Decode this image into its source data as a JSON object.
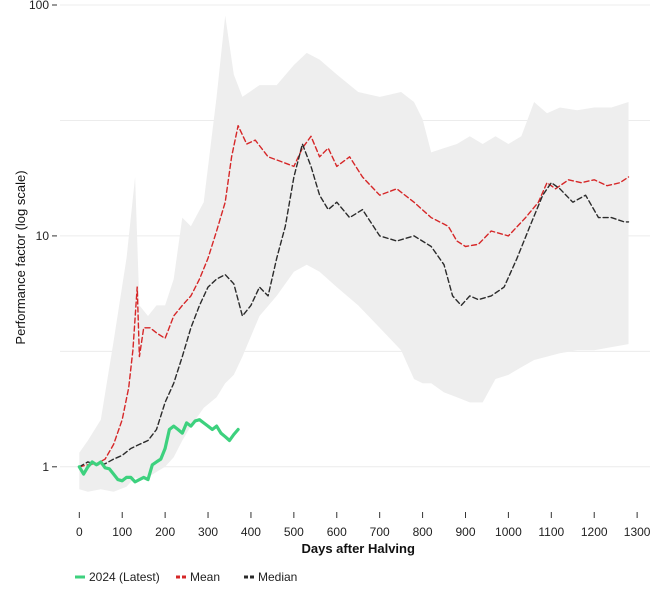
{
  "chart_data": {
    "type": "line",
    "title": "",
    "xlabel": "Days after Halving",
    "ylabel": "Performance factor (log scale)",
    "y_scale": "log",
    "xlim": [
      -45,
      1330
    ],
    "ylim": [
      0.65,
      100
    ],
    "x_ticks": [
      0,
      100,
      200,
      300,
      400,
      500,
      600,
      700,
      800,
      900,
      1000,
      1100,
      1200,
      1300
    ],
    "y_tick_labels": [
      "1",
      "10",
      "100"
    ],
    "y_tick_values": [
      1,
      10,
      100
    ],
    "grid": true,
    "legend_position": "bottom-left",
    "colors": {
      "latest": "#3dd17e",
      "mean": "#d62728",
      "median": "#2b2b2b",
      "range_band": "#eeeeee",
      "grid": "#ececec"
    },
    "legend": [
      {
        "label": "2024 (Latest)",
        "color": "#3dd17e",
        "style": "solid"
      },
      {
        "label": "Mean",
        "color": "#d62728",
        "style": "dashed"
      },
      {
        "label": "Median",
        "color": "#2b2b2b",
        "style": "dashed"
      }
    ],
    "band": {
      "name": "range",
      "x": [
        0,
        20,
        50,
        80,
        110,
        130,
        140,
        160,
        180,
        200,
        220,
        240,
        260,
        290,
        320,
        340,
        360,
        380,
        420,
        460,
        500,
        530,
        560,
        600,
        650,
        700,
        750,
        780,
        800,
        820,
        850,
        880,
        910,
        940,
        970,
        1000,
        1030,
        1060,
        1090,
        1120,
        1160,
        1200,
        1240,
        1280
      ],
      "upper": [
        1.15,
        1.3,
        1.6,
        3.5,
        8.0,
        18.0,
        5.0,
        4.5,
        5.0,
        5.0,
        6.5,
        12.0,
        11.0,
        14.0,
        40.0,
        90.0,
        50.0,
        40.0,
        45.0,
        45.0,
        55.0,
        62.0,
        58.0,
        50.0,
        42.0,
        40.0,
        42.0,
        38.0,
        32.0,
        23.0,
        24.0,
        25.0,
        27.0,
        25.0,
        27.0,
        25.0,
        27.0,
        38.0,
        34.0,
        36.0,
        35.0,
        36.0,
        36.0,
        38.0
      ],
      "lower": [
        0.8,
        0.78,
        0.8,
        0.78,
        0.82,
        0.9,
        0.88,
        0.9,
        0.95,
        1.0,
        1.1,
        1.3,
        1.5,
        1.8,
        2.0,
        2.3,
        2.5,
        3.0,
        4.5,
        5.5,
        7.0,
        7.5,
        7.0,
        6.0,
        5.0,
        4.0,
        3.2,
        2.4,
        2.3,
        2.3,
        2.1,
        2.0,
        1.9,
        1.9,
        2.4,
        2.5,
        2.7,
        2.9,
        3.0,
        3.1,
        3.2,
        3.2,
        3.3,
        3.4
      ]
    },
    "series": [
      {
        "name": "2024 (Latest)",
        "x": [
          0,
          10,
          20,
          30,
          40,
          50,
          60,
          70,
          80,
          90,
          100,
          110,
          120,
          130,
          140,
          150,
          160,
          170,
          180,
          190,
          200,
          210,
          220,
          230,
          240,
          250,
          260,
          270,
          280,
          290,
          300,
          310,
          320,
          330,
          340,
          350,
          360,
          370
        ],
        "values": [
          1.0,
          0.93,
          1.0,
          1.05,
          1.02,
          1.05,
          0.99,
          0.98,
          0.93,
          0.88,
          0.87,
          0.9,
          0.9,
          0.86,
          0.88,
          0.9,
          0.88,
          1.02,
          1.05,
          1.08,
          1.2,
          1.45,
          1.5,
          1.45,
          1.4,
          1.55,
          1.5,
          1.58,
          1.6,
          1.55,
          1.5,
          1.45,
          1.5,
          1.4,
          1.35,
          1.3,
          1.38,
          1.45
        ]
      },
      {
        "name": "Mean",
        "x": [
          0,
          20,
          40,
          60,
          80,
          100,
          115,
          125,
          135,
          140,
          150,
          165,
          180,
          200,
          220,
          240,
          260,
          280,
          300,
          320,
          340,
          355,
          370,
          390,
          410,
          440,
          470,
          500,
          520,
          540,
          560,
          580,
          600,
          630,
          660,
          700,
          740,
          780,
          820,
          860,
          880,
          900,
          930,
          960,
          1000,
          1040,
          1070,
          1090,
          1110,
          1140,
          1170,
          1200,
          1230,
          1260,
          1280
        ],
        "values": [
          1.0,
          1.02,
          1.03,
          1.08,
          1.25,
          1.6,
          2.2,
          3.2,
          6.0,
          3.0,
          4.0,
          4.0,
          3.8,
          3.6,
          4.5,
          5.0,
          5.5,
          6.5,
          8.0,
          10.5,
          14.0,
          22.0,
          30.0,
          25.0,
          26.0,
          22.0,
          21.0,
          20.0,
          24.0,
          27.0,
          22.0,
          24.0,
          20.0,
          22.0,
          18.0,
          15.0,
          16.0,
          14.0,
          12.0,
          11.0,
          9.5,
          9.0,
          9.2,
          10.5,
          10.0,
          12.0,
          14.0,
          17.0,
          16.0,
          17.5,
          17.0,
          17.5,
          16.5,
          17.0,
          18.0
        ]
      },
      {
        "name": "Median",
        "x": [
          0,
          20,
          40,
          60,
          80,
          100,
          120,
          140,
          160,
          180,
          200,
          220,
          240,
          260,
          280,
          300,
          320,
          340,
          360,
          380,
          400,
          420,
          440,
          460,
          480,
          500,
          520,
          540,
          560,
          580,
          600,
          630,
          660,
          700,
          740,
          780,
          820,
          850,
          870,
          890,
          910,
          930,
          960,
          990,
          1020,
          1050,
          1080,
          1100,
          1120,
          1150,
          1180,
          1210,
          1240,
          1270,
          1280
        ],
        "values": [
          1.0,
          1.05,
          1.02,
          1.03,
          1.08,
          1.12,
          1.2,
          1.25,
          1.3,
          1.45,
          1.9,
          2.3,
          3.0,
          4.0,
          5.0,
          6.0,
          6.5,
          6.8,
          6.2,
          4.5,
          5.0,
          6.0,
          5.5,
          8.0,
          11.0,
          18.0,
          25.0,
          20.0,
          15.0,
          13.0,
          14.0,
          12.0,
          13.0,
          10.0,
          9.5,
          10.0,
          9.0,
          7.5,
          5.5,
          5.0,
          5.5,
          5.3,
          5.5,
          6.0,
          8.0,
          11.0,
          15.0,
          17.0,
          16.0,
          14.0,
          15.0,
          12.0,
          12.0,
          11.5,
          11.5
        ]
      }
    ]
  }
}
